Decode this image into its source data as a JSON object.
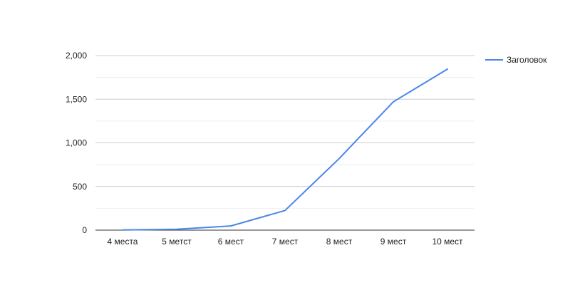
{
  "chart_data": {
    "type": "line",
    "title": "",
    "xlabel": "",
    "ylabel": "",
    "categories": [
      "4 места",
      "5 метст",
      "6 мест",
      "7 мест",
      "8 мест",
      "9 мест",
      "10 мест"
    ],
    "series": [
      {
        "name": "Заголовок",
        "values": [
          2,
          10,
          48,
          225,
          820,
          1470,
          1845
        ],
        "color": "#4a86e8"
      }
    ],
    "ylim": [
      0,
      2000
    ],
    "yticks": [
      0,
      500,
      1000,
      1500,
      2000
    ],
    "ytick_labels": [
      "0",
      "500",
      "1,000",
      "1,500",
      "2,000"
    ],
    "grid": true,
    "minor_grid": true,
    "legend_position": "right"
  }
}
